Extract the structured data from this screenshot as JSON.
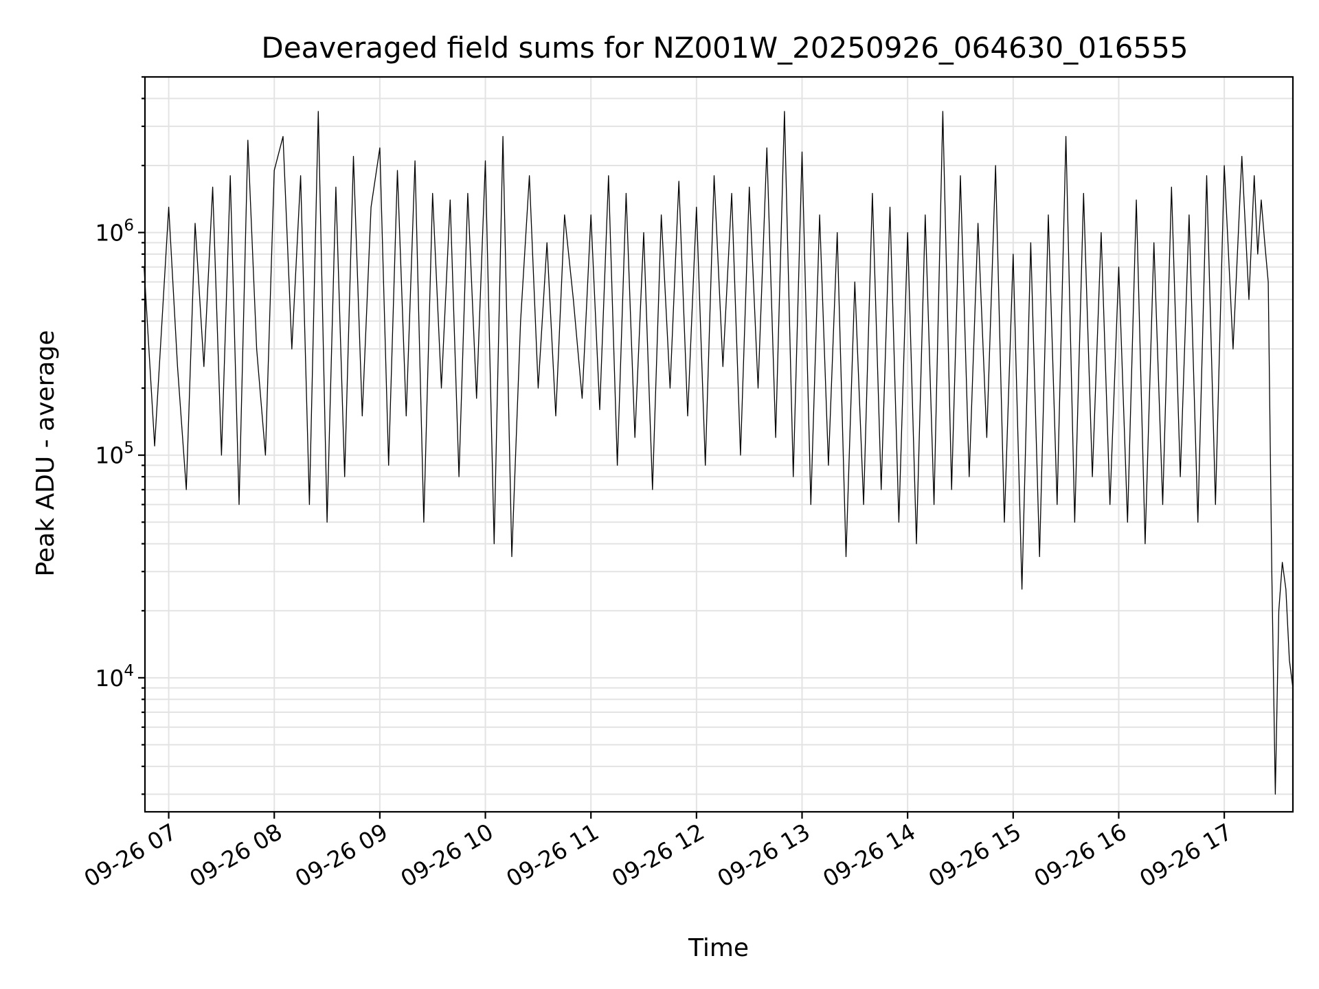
{
  "chart_data": {
    "type": "line",
    "title": "Deaveraged field sums for NZ001W_20250926_064630_016555",
    "xlabel": "Time",
    "ylabel": "Peak ADU - average",
    "yscale": "log",
    "ylim": [
      2500,
      5000000
    ],
    "xlim": [
      "2025-09-26 06:46:30",
      "2025-09-26 17:39"
    ],
    "grid": true,
    "legend": "none",
    "line_color": "#000000",
    "x_tick_labels": [
      "09-26 07",
      "09-26 08",
      "09-26 09",
      "09-26 10",
      "09-26 11",
      "09-26 12",
      "09-26 13",
      "09-26 14",
      "09-26 15",
      "09-26 16",
      "09-26 17"
    ],
    "y_tick_labels": [
      {
        "base": "10",
        "exp": "4",
        "value": 10000
      },
      {
        "base": "10",
        "exp": "5",
        "value": 100000
      },
      {
        "base": "10",
        "exp": "6",
        "value": 1000000
      }
    ],
    "x": [
      "2025-09-26 06:46",
      "2025-09-26 06:52",
      "2025-09-26 07:00",
      "2025-09-26 07:05",
      "2025-09-26 07:10",
      "2025-09-26 07:15",
      "2025-09-26 07:20",
      "2025-09-26 07:25",
      "2025-09-26 07:30",
      "2025-09-26 07:35",
      "2025-09-26 07:40",
      "2025-09-26 07:45",
      "2025-09-26 07:50",
      "2025-09-26 07:55",
      "2025-09-26 08:00",
      "2025-09-26 08:05",
      "2025-09-26 08:10",
      "2025-09-26 08:15",
      "2025-09-26 08:20",
      "2025-09-26 08:25",
      "2025-09-26 08:30",
      "2025-09-26 08:35",
      "2025-09-26 08:40",
      "2025-09-26 08:45",
      "2025-09-26 08:50",
      "2025-09-26 08:55",
      "2025-09-26 09:00",
      "2025-09-26 09:05",
      "2025-09-26 09:10",
      "2025-09-26 09:15",
      "2025-09-26 09:20",
      "2025-09-26 09:25",
      "2025-09-26 09:30",
      "2025-09-26 09:35",
      "2025-09-26 09:40",
      "2025-09-26 09:45",
      "2025-09-26 09:50",
      "2025-09-26 09:55",
      "2025-09-26 10:00",
      "2025-09-26 10:05",
      "2025-09-26 10:10",
      "2025-09-26 10:15",
      "2025-09-26 10:20",
      "2025-09-26 10:25",
      "2025-09-26 10:30",
      "2025-09-26 10:35",
      "2025-09-26 10:40",
      "2025-09-26 10:45",
      "2025-09-26 10:50",
      "2025-09-26 10:55",
      "2025-09-26 11:00",
      "2025-09-26 11:05",
      "2025-09-26 11:10",
      "2025-09-26 11:15",
      "2025-09-26 11:20",
      "2025-09-26 11:25",
      "2025-09-26 11:30",
      "2025-09-26 11:35",
      "2025-09-26 11:40",
      "2025-09-26 11:45",
      "2025-09-26 11:50",
      "2025-09-26 11:55",
      "2025-09-26 12:00",
      "2025-09-26 12:05",
      "2025-09-26 12:10",
      "2025-09-26 12:15",
      "2025-09-26 12:20",
      "2025-09-26 12:25",
      "2025-09-26 12:30",
      "2025-09-26 12:35",
      "2025-09-26 12:40",
      "2025-09-26 12:45",
      "2025-09-26 12:50",
      "2025-09-26 12:55",
      "2025-09-26 13:00",
      "2025-09-26 13:05",
      "2025-09-26 13:10",
      "2025-09-26 13:15",
      "2025-09-26 13:20",
      "2025-09-26 13:25",
      "2025-09-26 13:30",
      "2025-09-26 13:35",
      "2025-09-26 13:40",
      "2025-09-26 13:45",
      "2025-09-26 13:50",
      "2025-09-26 13:55",
      "2025-09-26 14:00",
      "2025-09-26 14:05",
      "2025-09-26 14:10",
      "2025-09-26 14:15",
      "2025-09-26 14:20",
      "2025-09-26 14:25",
      "2025-09-26 14:30",
      "2025-09-26 14:35",
      "2025-09-26 14:40",
      "2025-09-26 14:45",
      "2025-09-26 14:50",
      "2025-09-26 14:55",
      "2025-09-26 15:00",
      "2025-09-26 15:05",
      "2025-09-26 15:10",
      "2025-09-26 15:15",
      "2025-09-26 15:20",
      "2025-09-26 15:25",
      "2025-09-26 15:30",
      "2025-09-26 15:35",
      "2025-09-26 15:40",
      "2025-09-26 15:45",
      "2025-09-26 15:50",
      "2025-09-26 15:55",
      "2025-09-26 16:00",
      "2025-09-26 16:05",
      "2025-09-26 16:10",
      "2025-09-26 16:15",
      "2025-09-26 16:20",
      "2025-09-26 16:25",
      "2025-09-26 16:30",
      "2025-09-26 16:35",
      "2025-09-26 16:40",
      "2025-09-26 16:45",
      "2025-09-26 16:50",
      "2025-09-26 16:55",
      "2025-09-26 17:00",
      "2025-09-26 17:05",
      "2025-09-26 17:10",
      "2025-09-26 17:14",
      "2025-09-26 17:17",
      "2025-09-26 17:19",
      "2025-09-26 17:21",
      "2025-09-26 17:23",
      "2025-09-26 17:25",
      "2025-09-26 17:27",
      "2025-09-26 17:29",
      "2025-09-26 17:31",
      "2025-09-26 17:33",
      "2025-09-26 17:35",
      "2025-09-26 17:37",
      "2025-09-26 17:39"
    ],
    "y": [
      700000,
      110000,
      1300000,
      250000,
      70000,
      1100000,
      250000,
      1600000,
      100000,
      1800000,
      60000,
      2600000,
      300000,
      100000,
      1900000,
      2700000,
      300000,
      1800000,
      60000,
      3500000,
      50000,
      1600000,
      80000,
      2200000,
      150000,
      1300000,
      2400000,
      90000,
      1900000,
      150000,
      2100000,
      50000,
      1500000,
      200000,
      1400000,
      80000,
      1500000,
      180000,
      2100000,
      40000,
      2700000,
      35000,
      400000,
      1800000,
      200000,
      900000,
      150000,
      1200000,
      500000,
      180000,
      1200000,
      160000,
      1800000,
      90000,
      1500000,
      120000,
      1000000,
      70000,
      1200000,
      200000,
      1700000,
      150000,
      1300000,
      90000,
      1800000,
      250000,
      1500000,
      100000,
      1600000,
      200000,
      2400000,
      120000,
      3500000,
      80000,
      2300000,
      60000,
      1200000,
      90000,
      1000000,
      35000,
      600000,
      60000,
      1500000,
      70000,
      1300000,
      50000,
      1000000,
      40000,
      1200000,
      60000,
      3500000,
      70000,
      1800000,
      80000,
      1100000,
      120000,
      2000000,
      50000,
      800000,
      25000,
      900000,
      35000,
      1200000,
      60000,
      2700000,
      50000,
      1500000,
      80000,
      1000000,
      60000,
      700000,
      50000,
      1400000,
      40000,
      900000,
      60000,
      1600000,
      80000,
      1200000,
      50000,
      1800000,
      60000,
      2000000,
      300000,
      2200000,
      500000,
      1800000,
      800000,
      1400000,
      900000,
      600000,
      30000,
      3000,
      20000,
      33000,
      25000,
      12000,
      9000
    ]
  }
}
